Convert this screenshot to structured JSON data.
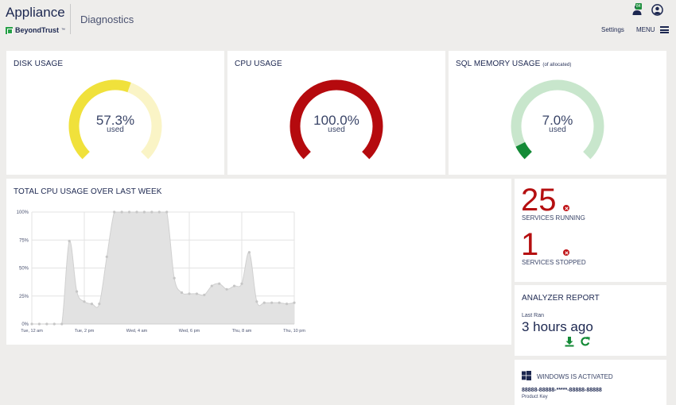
{
  "header": {
    "app_title": "Appliance",
    "brand": "BeyondTrust",
    "brand_tm": "™",
    "page_title": "Diagnostics",
    "notification_count": "84",
    "settings_label": "Settings",
    "menu_label": "MENU"
  },
  "gauges": [
    {
      "title": "DISK USAGE",
      "title_note": "",
      "value_text": "57.3%",
      "sub": "used",
      "fraction": 0.573,
      "color": "#f0e13b",
      "track_color": "#faf4c6"
    },
    {
      "title": "CPU USAGE",
      "title_note": "",
      "value_text": "100.0%",
      "sub": "used",
      "fraction": 1.0,
      "color": "#b50a0e",
      "track_color": "#f3c4c4"
    },
    {
      "title": "SQL MEMORY USAGE",
      "title_note": "(of allocated)",
      "value_text": "7.0%",
      "sub": "used",
      "fraction": 0.07,
      "color": "#138a36",
      "track_color": "#c8e6cc"
    }
  ],
  "cpu_chart": {
    "title": "TOTAL CPU USAGE OVER LAST WEEK"
  },
  "chart_data": {
    "type": "area",
    "title": "TOTAL CPU USAGE OVER LAST WEEK",
    "xlabel": "",
    "ylabel": "",
    "ylim": [
      0,
      100
    ],
    "yticks": [
      "0%",
      "25%",
      "50%",
      "75%",
      "100%"
    ],
    "xticks": [
      "Tue, 12 am",
      "Tue, 2 pm",
      "Wed, 4 am",
      "Wed, 6 pm",
      "Thu, 8 am",
      "Thu, 10 pm"
    ],
    "grid": true,
    "series": [
      {
        "values": [
          0,
          0,
          0,
          0,
          0,
          74,
          29,
          20,
          18,
          18,
          60,
          100,
          100,
          100,
          100,
          100,
          100,
          100,
          100,
          41,
          28,
          27,
          27,
          26,
          34,
          36,
          31,
          34,
          36,
          64,
          20,
          19,
          19,
          19,
          18,
          19
        ]
      }
    ]
  },
  "services": {
    "running_count": "25",
    "running_label": "SERVICES RUNNING",
    "stopped_count": "1",
    "stopped_label": "SERVICES STOPPED"
  },
  "analyzer": {
    "title": "ANALYZER REPORT",
    "last_ran_label": "Last Ran",
    "last_ran_value": "3 hours ago"
  },
  "windows": {
    "status": "WINDOWS IS ACTIVATED",
    "product_key": "88888-88888-*****-88888-88888",
    "product_key_label": "Product Key"
  }
}
